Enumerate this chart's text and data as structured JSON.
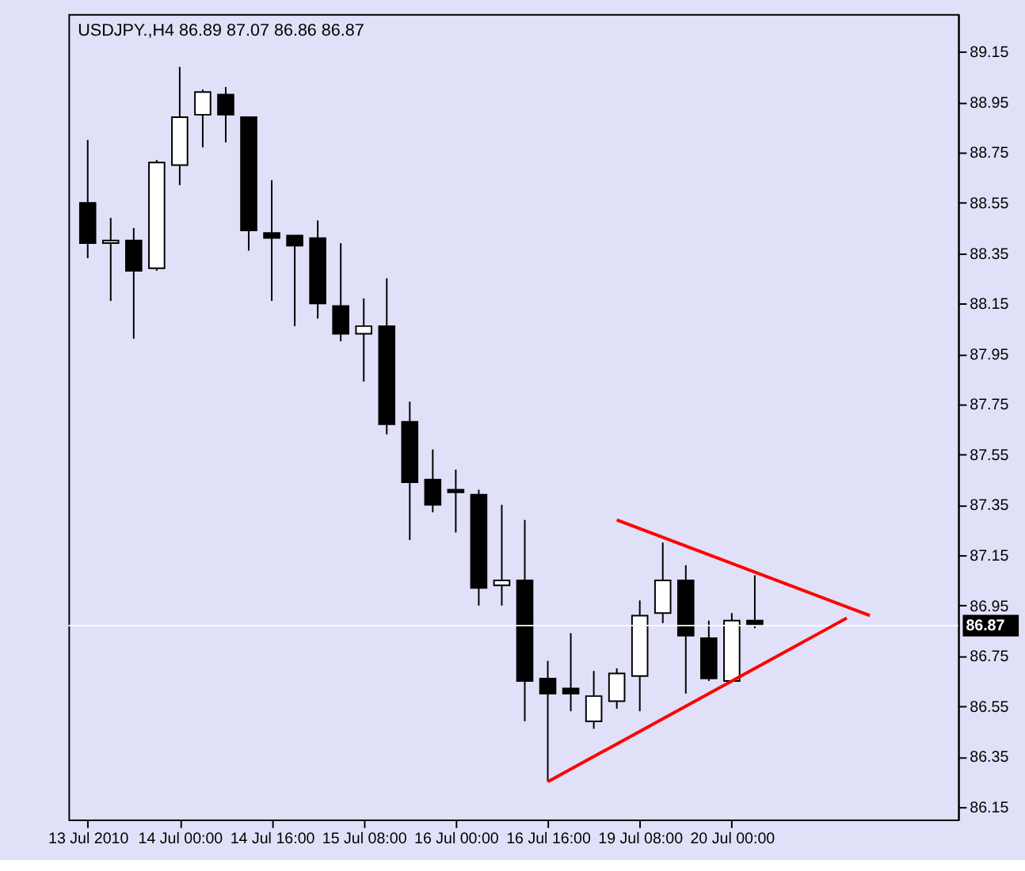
{
  "chart_data": {
    "type": "candlestick",
    "title": "USDJPY.,H4  86.89 87.07 86.86 86.87",
    "categories": [
      "13 Jul 2010",
      null,
      null,
      null,
      "14 Jul 00:00",
      null,
      null,
      null,
      "14 Jul 16:00",
      null,
      null,
      null,
      "15 Jul 08:00",
      null,
      null,
      null,
      "16 Jul 00:00",
      null,
      null,
      null,
      "16 Jul 16:00",
      null,
      null,
      null,
      "19 Jul 08:00",
      null,
      null,
      null,
      "20 Jul 00:00",
      null,
      null,
      null,
      null,
      null,
      null,
      null,
      null,
      null
    ],
    "ohlc": [
      [
        88.55,
        88.8,
        88.33,
        88.39
      ],
      [
        88.39,
        88.49,
        88.16,
        88.4
      ],
      [
        88.4,
        88.45,
        88.01,
        88.28
      ],
      [
        88.29,
        88.72,
        88.28,
        88.71
      ],
      [
        88.7,
        89.09,
        88.62,
        88.89
      ],
      [
        88.9,
        89.0,
        88.77,
        88.99
      ],
      [
        88.98,
        89.01,
        88.79,
        88.9
      ],
      [
        88.89,
        88.89,
        88.36,
        88.44
      ],
      [
        88.43,
        88.64,
        88.16,
        88.41
      ],
      [
        88.42,
        88.42,
        88.06,
        88.38
      ],
      [
        88.41,
        88.48,
        88.09,
        88.15
      ],
      [
        88.14,
        88.39,
        88.0,
        88.03
      ],
      [
        88.03,
        88.17,
        87.84,
        88.06
      ],
      [
        88.06,
        88.25,
        87.63,
        87.67
      ],
      [
        87.68,
        87.76,
        87.21,
        87.44
      ],
      [
        87.45,
        87.57,
        87.32,
        87.35
      ],
      [
        87.41,
        87.49,
        87.24,
        87.4
      ],
      [
        87.39,
        87.41,
        86.95,
        87.02
      ],
      [
        87.03,
        87.35,
        86.95,
        87.05
      ],
      [
        87.05,
        87.29,
        86.49,
        86.65
      ],
      [
        86.66,
        86.73,
        86.25,
        86.6
      ],
      [
        86.62,
        86.84,
        86.53,
        86.6
      ],
      [
        86.49,
        86.69,
        86.46,
        86.59
      ],
      [
        86.57,
        86.7,
        86.54,
        86.68
      ],
      [
        86.67,
        86.97,
        86.53,
        86.91
      ],
      [
        86.92,
        87.2,
        86.88,
        87.05
      ],
      [
        87.05,
        87.11,
        86.6,
        86.83
      ],
      [
        86.82,
        86.89,
        86.65,
        86.66
      ],
      [
        86.65,
        86.92,
        86.65,
        86.89
      ],
      [
        86.89,
        87.07,
        86.86,
        86.87
      ],
      null,
      null,
      null,
      null,
      null,
      null,
      null,
      null
    ],
    "colors": [
      "#000000",
      "#ffffff",
      "#000000",
      "#ffffff",
      "#ffffff",
      "#ffffff",
      "#000000",
      "#000000",
      "#000000",
      "#000000",
      "#000000",
      "#000000",
      "#ffffff",
      "#000000",
      "#000000",
      "#000000",
      "#000000",
      "#000000",
      "#ffffff",
      "#000000",
      "#000000",
      "#000000",
      "#ffffff",
      "#ffffff",
      "#ffffff",
      "#ffffff",
      "#000000",
      "#000000",
      "#ffffff",
      "#000000",
      null,
      null,
      null,
      null,
      null,
      null,
      null,
      null
    ],
    "series": [
      {
        "type": "line",
        "color": "#ff0000",
        "values": [
          null,
          null,
          null,
          null,
          null,
          null,
          null,
          null,
          null,
          null,
          null,
          null,
          null,
          null,
          null,
          null,
          null,
          null,
          null,
          null,
          null,
          null,
          null,
          87.29,
          null,
          null,
          null,
          null,
          null,
          null,
          null,
          null,
          null,
          null,
          86.91,
          null,
          null,
          null
        ]
      },
      {
        "type": "line",
        "color": "#ff0000",
        "values": [
          null,
          null,
          null,
          null,
          null,
          null,
          null,
          null,
          null,
          null,
          null,
          null,
          null,
          null,
          null,
          null,
          null,
          null,
          null,
          null,
          86.25,
          null,
          null,
          null,
          null,
          null,
          null,
          null,
          null,
          null,
          null,
          null,
          null,
          86.9,
          null,
          null,
          null,
          null
        ]
      }
    ],
    "ylim": [
      86.1,
      89.3
    ],
    "yticks": [
      86.15,
      86.35,
      86.55,
      86.75,
      86.95,
      87.15,
      87.35,
      87.55,
      87.75,
      87.95,
      88.15,
      88.35,
      88.55,
      88.75,
      88.95,
      89.15
    ],
    "ref_lines": [
      {
        "axis": "y",
        "value": 86.87,
        "label": "86.87",
        "color": "#ffffff"
      }
    ],
    "grid": false,
    "line_style": "solid"
  }
}
